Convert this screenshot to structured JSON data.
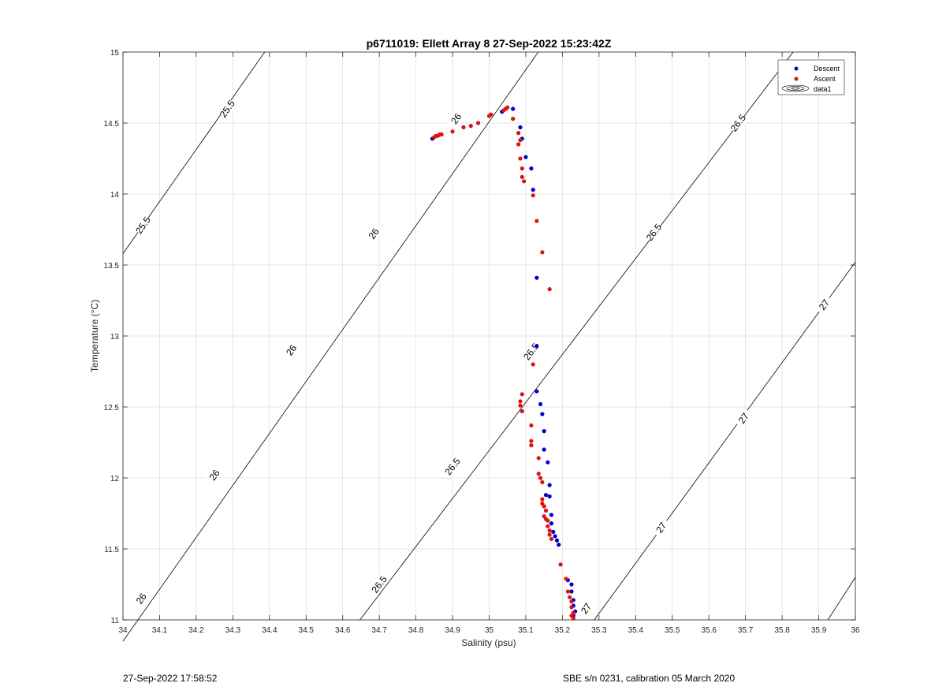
{
  "chart_data": {
    "type": "scatter",
    "title": "p6711019: Ellett Array 8 27-Sep-2022 15:23:42Z",
    "xlabel": "Salinity (psu)",
    "ylabel": "Temperature (°C)",
    "xlim": [
      34,
      36
    ],
    "ylim": [
      11,
      15
    ],
    "xticks": [
      34,
      34.1,
      34.2,
      34.3,
      34.4,
      34.5,
      34.6,
      34.7,
      34.8,
      34.9,
      35,
      35.1,
      35.2,
      35.3,
      35.4,
      35.5,
      35.6,
      35.7,
      35.8,
      35.9,
      36
    ],
    "xtick_labels": [
      "34",
      "34.1",
      "34.2",
      "34.3",
      "34.4",
      "34.5",
      "34.6",
      "34.7",
      "34.8",
      "34.9",
      "35",
      "35.1",
      "35.2",
      "35.3",
      "35.4",
      "35.5",
      "35.6",
      "35.7",
      "35.8",
      "35.9",
      "36"
    ],
    "yticks": [
      11,
      11.5,
      12,
      12.5,
      13,
      13.5,
      14,
      14.5,
      15
    ],
    "ytick_labels": [
      "11",
      "11.5",
      "12",
      "12.5",
      "13",
      "13.5",
      "14",
      "14.5",
      "15"
    ],
    "grid": true,
    "legend_position": "top-right",
    "legend": [
      "Descent",
      "Ascent",
      "data1"
    ],
    "series": [
      {
        "name": "Descent",
        "color": "#0000cc",
        "points": [
          [
            34.845,
            14.39
          ],
          [
            35.035,
            14.58
          ],
          [
            35.065,
            14.6
          ],
          [
            35.085,
            14.47
          ],
          [
            35.09,
            14.39
          ],
          [
            35.1,
            14.26
          ],
          [
            35.115,
            14.18
          ],
          [
            35.12,
            14.03
          ],
          [
            35.13,
            13.41
          ],
          [
            35.13,
            12.93
          ],
          [
            35.13,
            12.61
          ],
          [
            35.14,
            12.52
          ],
          [
            35.145,
            12.45
          ],
          [
            35.15,
            12.33
          ],
          [
            35.15,
            12.2
          ],
          [
            35.16,
            12.11
          ],
          [
            35.165,
            11.95
          ],
          [
            35.155,
            11.88
          ],
          [
            35.165,
            11.87
          ],
          [
            35.17,
            11.74
          ],
          [
            35.17,
            11.68
          ],
          [
            35.175,
            11.62
          ],
          [
            35.18,
            11.59
          ],
          [
            35.185,
            11.56
          ],
          [
            35.19,
            11.53
          ],
          [
            35.215,
            11.28
          ],
          [
            35.225,
            11.25
          ],
          [
            35.225,
            11.2
          ],
          [
            35.23,
            11.14
          ],
          [
            35.23,
            11.1
          ],
          [
            35.235,
            11.06
          ],
          [
            35.23,
            11.03
          ]
        ]
      },
      {
        "name": "Ascent",
        "color": "#dd1111",
        "points": [
          [
            34.85,
            14.4
          ],
          [
            34.855,
            14.41
          ],
          [
            34.86,
            14.41
          ],
          [
            34.865,
            14.42
          ],
          [
            34.87,
            14.42
          ],
          [
            34.9,
            14.44
          ],
          [
            34.93,
            14.47
          ],
          [
            34.95,
            14.48
          ],
          [
            34.97,
            14.5
          ],
          [
            35.0,
            14.55
          ],
          [
            35.005,
            14.56
          ],
          [
            35.04,
            14.59
          ],
          [
            35.045,
            14.6
          ],
          [
            35.05,
            14.61
          ],
          [
            35.065,
            14.53
          ],
          [
            35.08,
            14.43
          ],
          [
            35.085,
            14.38
          ],
          [
            35.08,
            14.35
          ],
          [
            35.085,
            14.25
          ],
          [
            35.09,
            14.18
          ],
          [
            35.09,
            14.12
          ],
          [
            35.095,
            14.09
          ],
          [
            35.12,
            13.99
          ],
          [
            35.13,
            13.81
          ],
          [
            35.145,
            13.59
          ],
          [
            35.165,
            13.33
          ],
          [
            35.12,
            12.8
          ],
          [
            35.09,
            12.59
          ],
          [
            35.085,
            12.54
          ],
          [
            35.085,
            12.51
          ],
          [
            35.09,
            12.47
          ],
          [
            35.115,
            12.37
          ],
          [
            35.115,
            12.26
          ],
          [
            35.115,
            12.23
          ],
          [
            35.135,
            12.14
          ],
          [
            35.135,
            12.03
          ],
          [
            35.14,
            12.0
          ],
          [
            35.145,
            11.97
          ],
          [
            35.145,
            11.85
          ],
          [
            35.145,
            11.82
          ],
          [
            35.15,
            11.8
          ],
          [
            35.155,
            11.77
          ],
          [
            35.15,
            11.73
          ],
          [
            35.155,
            11.71
          ],
          [
            35.16,
            11.7
          ],
          [
            35.16,
            11.66
          ],
          [
            35.165,
            11.63
          ],
          [
            35.165,
            11.6
          ],
          [
            35.17,
            11.57
          ],
          [
            35.195,
            11.39
          ],
          [
            35.21,
            11.29
          ],
          [
            35.215,
            11.2
          ],
          [
            35.22,
            11.16
          ],
          [
            35.225,
            11.13
          ],
          [
            35.225,
            11.09
          ],
          [
            35.23,
            11.05
          ],
          [
            35.225,
            11.03
          ],
          [
            35.23,
            11.01
          ]
        ]
      }
    ],
    "contours": [
      {
        "label": "25.5",
        "line": [
          [
            34,
            13.58
          ],
          [
            34.387,
            15
          ]
        ],
        "labels_at": [
          [
            34.285,
            14.6
          ],
          [
            34.055,
            13.78
          ]
        ]
      },
      {
        "label": "26",
        "line": [
          [
            34,
            10.85
          ],
          [
            35.134,
            15
          ]
        ],
        "labels_at": [
          [
            34.91,
            14.53
          ],
          [
            34.685,
            13.72
          ],
          [
            34.46,
            12.9
          ],
          [
            34.25,
            12.02
          ],
          [
            34.05,
            11.15
          ]
        ]
      },
      {
        "label": "26.5",
        "line": [
          [
            34.647,
            11
          ],
          [
            35.83,
            15
          ]
        ],
        "labels_at": [
          [
            35.68,
            14.5
          ],
          [
            35.45,
            13.73
          ],
          [
            35.115,
            12.89
          ],
          [
            34.9,
            12.08
          ],
          [
            34.7,
            11.25
          ]
        ]
      },
      {
        "label": "27",
        "line": [
          [
            35.287,
            11
          ],
          [
            36,
            13.52
          ]
        ],
        "labels_at": [
          [
            35.915,
            13.22
          ],
          [
            35.695,
            12.42
          ],
          [
            35.47,
            11.65
          ],
          [
            35.265,
            11.08
          ]
        ]
      },
      {
        "label": "",
        "line": [
          [
            35.925,
            11
          ],
          [
            36,
            11.3
          ]
        ],
        "labels_at": []
      }
    ]
  },
  "footer": {
    "timestamp": "27-Sep-2022 17:58:52",
    "sensor": "SBE s/n 0231, calibration 05 March 2020"
  }
}
